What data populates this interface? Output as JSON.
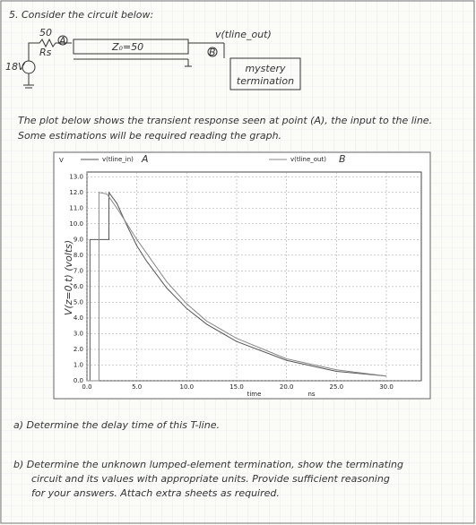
{
  "header": {
    "title": "5. Consider the circuit below:"
  },
  "circuit": {
    "source": "18V",
    "resistor_value": "50",
    "resistor_name": "Rs",
    "node_a": "A",
    "line": "Z₀=50",
    "out_label": "v(tline_out)",
    "node_b": "B",
    "load": [
      "mystery",
      "termination"
    ]
  },
  "intro": [
    "The plot below shows the transient response seen at point (A), the input to the line.",
    "Some estimations will be required reading the graph."
  ],
  "plot": {
    "type": "line",
    "unit": "V",
    "xlabel": "time",
    "xunit": "ns",
    "ylabel": "V(z=0,t) (volts)",
    "xlim": [
      0,
      33.5
    ],
    "ylim": [
      0,
      13.3
    ],
    "xticks": [
      {
        "value": 0,
        "label": "0.0"
      },
      {
        "value": 5,
        "label": "5.0"
      },
      {
        "value": 10,
        "label": "10.0"
      },
      {
        "value": 15,
        "label": "15.0"
      },
      {
        "value": 20,
        "label": "20.0"
      },
      {
        "value": 25,
        "label": "25.0"
      },
      {
        "value": 30,
        "label": "30.0"
      }
    ],
    "yticks": [
      {
        "value": 0,
        "label": "0.0"
      },
      {
        "value": 1,
        "label": "1.0"
      },
      {
        "value": 2,
        "label": "2.0"
      },
      {
        "value": 3,
        "label": "3.0"
      },
      {
        "value": 4,
        "label": "4.0"
      },
      {
        "value": 5,
        "label": "5.0"
      },
      {
        "value": 6,
        "label": "6.0"
      },
      {
        "value": 7,
        "label": "7.0"
      },
      {
        "value": 8,
        "label": "8.0"
      },
      {
        "value": 9,
        "label": "9.0"
      },
      {
        "value": 10,
        "label": "10.0"
      },
      {
        "value": 11,
        "label": "11.0"
      },
      {
        "value": 12,
        "label": "12.0"
      },
      {
        "value": 13,
        "label": "13.0"
      }
    ],
    "grid": true,
    "series": [
      {
        "name": "v(tline_in)",
        "marker": "A",
        "color": "#555555",
        "x": [
          0,
          0.3,
          0.3,
          2.2,
          2.2,
          3,
          4,
          5,
          6,
          8,
          10,
          12,
          15,
          20,
          25,
          30
        ],
        "values": [
          0,
          0,
          9,
          9,
          12,
          11.3,
          9.9,
          8.6,
          7.6,
          5.9,
          4.6,
          3.6,
          2.5,
          1.3,
          0.6,
          0.3
        ]
      },
      {
        "name": "v(tline_out)",
        "marker": "B",
        "color": "#888888",
        "x": [
          0,
          1.2,
          1.2,
          2,
          3,
          4,
          5,
          6,
          8,
          10,
          12,
          15,
          20,
          25,
          30
        ],
        "values": [
          0,
          0,
          12,
          11.9,
          11,
          10,
          9,
          8.1,
          6.3,
          4.9,
          3.8,
          2.7,
          1.4,
          0.7,
          0.3
        ]
      }
    ]
  },
  "questions": [
    "a) Determine the delay time of this T-line.",
    "b) Determine the unknown lumped-element termination, show the terminating",
    "circuit and its values with appropriate units. Provide sufficient reasoning",
    "for your answers. Attach extra sheets as required."
  ]
}
